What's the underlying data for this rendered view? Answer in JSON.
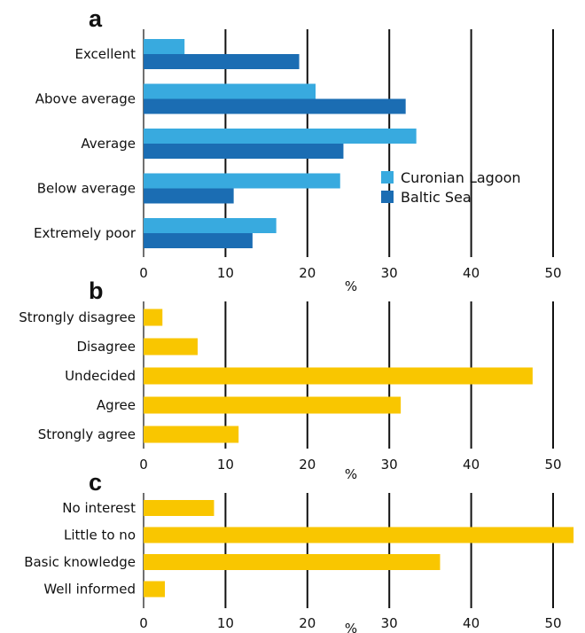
{
  "chart_data": [
    {
      "type": "bar",
      "orientation": "horizontal",
      "panel_label": "a",
      "categories": [
        "Excellent",
        "Above average",
        "Average",
        "Below average",
        "Extremely poor"
      ],
      "series": [
        {
          "name": "Curonian Lagoon",
          "color": "#38aadf",
          "values": [
            5,
            21,
            33.3,
            24,
            16.2
          ]
        },
        {
          "name": "Baltic Sea",
          "color": "#1b6db3",
          "values": [
            19,
            32,
            24.4,
            11,
            13.3
          ]
        }
      ],
      "xlabel": "%",
      "xlim": [
        0,
        50
      ],
      "xticks": [
        0,
        10,
        20,
        30,
        40,
        50
      ],
      "grid": true,
      "legend": "center-right"
    },
    {
      "type": "bar",
      "orientation": "horizontal",
      "panel_label": "b",
      "categories": [
        "Strongly disagree",
        "Disagree",
        "Undecided",
        "Agree",
        "Strongly agree"
      ],
      "series": [
        {
          "color": "#f9c600",
          "values": [
            2.3,
            6.6,
            47.5,
            31.4,
            11.6
          ]
        }
      ],
      "xlabel": "%",
      "xlim": [
        0,
        50
      ],
      "xticks": [
        0,
        10,
        20,
        30,
        40,
        50
      ],
      "grid": true
    },
    {
      "type": "bar",
      "orientation": "horizontal",
      "panel_label": "c",
      "categories": [
        "No interest",
        "Little to no",
        "Basic knowledge",
        "Well informed"
      ],
      "series": [
        {
          "color": "#f9c600",
          "values": [
            8.6,
            52.5,
            36.2,
            2.6
          ]
        }
      ],
      "xlabel": "%",
      "xlim": [
        0,
        50
      ],
      "xticks": [
        0,
        10,
        20,
        30,
        40,
        50
      ],
      "grid": true
    }
  ]
}
